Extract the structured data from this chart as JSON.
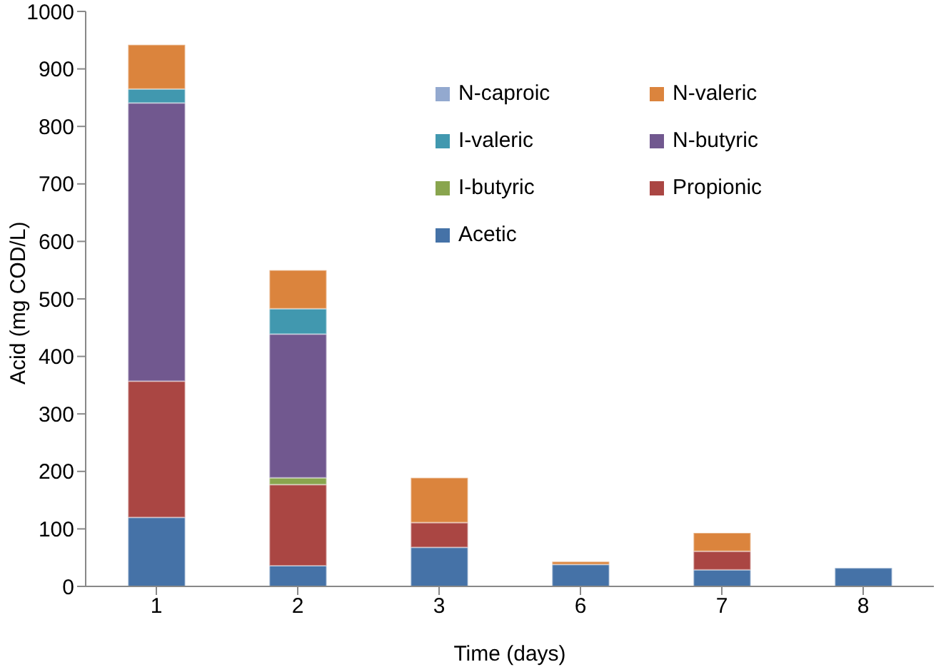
{
  "chart_data": {
    "type": "bar",
    "stacked": true,
    "xlabel": "Time (days)",
    "ylabel": "Acid (mg COD/L)",
    "categories": [
      "1",
      "2",
      "3",
      "6",
      "7",
      "8"
    ],
    "ylim": [
      0,
      1000
    ],
    "yticks": [
      0,
      100,
      200,
      300,
      400,
      500,
      600,
      700,
      800,
      900,
      1000
    ],
    "grid": false,
    "legend": "top right",
    "series": [
      {
        "name": "Acetic",
        "color": "#4572a7",
        "values": [
          120,
          36,
          68,
          38,
          29,
          32
        ]
      },
      {
        "name": "Propionic",
        "color": "#aa4643",
        "values": [
          237,
          141,
          43,
          0,
          32,
          0
        ]
      },
      {
        "name": "I-butyric",
        "color": "#89a54e",
        "values": [
          0,
          12,
          0,
          0,
          0,
          0
        ]
      },
      {
        "name": "N-butyric",
        "color": "#71588f",
        "values": [
          484,
          250,
          0,
          0,
          0,
          0
        ]
      },
      {
        "name": "I-valeric",
        "color": "#4198af",
        "values": [
          24,
          44,
          0,
          0,
          0,
          0
        ]
      },
      {
        "name": "N-valeric",
        "color": "#db843d",
        "values": [
          77,
          67,
          78,
          5,
          32,
          0
        ]
      },
      {
        "name": "N-caproic",
        "color": "#93a9cf",
        "values": [
          0,
          0,
          0,
          0,
          0,
          0
        ]
      }
    ]
  }
}
